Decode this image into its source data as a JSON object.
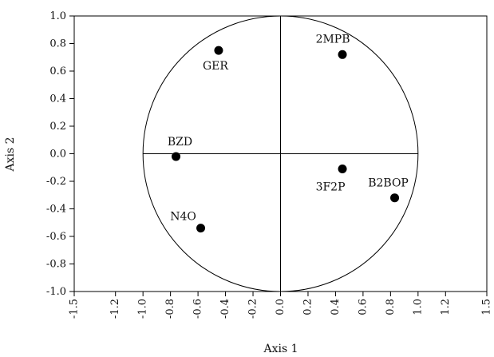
{
  "chart_data": {
    "type": "scatter",
    "title": "",
    "xlabel": "Axis 1",
    "ylabel": "Axis 2",
    "xlim": [
      -1.5,
      1.5
    ],
    "ylim": [
      -1.0,
      1.0
    ],
    "x_ticks": [
      "-1.5",
      "-1.2",
      "-1.0",
      "-0.8",
      "-0.6",
      "-0.4",
      "-0.2",
      "0.0",
      "0.2",
      "0.4",
      "0.6",
      "0.8",
      "1.0",
      "1.2",
      "1.5"
    ],
    "x_tick_values": [
      -1.5,
      -1.2,
      -1.0,
      -0.8,
      -0.6,
      -0.4,
      -0.2,
      0.0,
      0.2,
      0.4,
      0.6,
      0.8,
      1.0,
      1.2,
      1.5
    ],
    "y_ticks": [
      "1.0",
      "0.8",
      "0.6",
      "0.4",
      "0.2",
      "0.0",
      "-0.2",
      "-0.4",
      "-0.6",
      "-0.8",
      "-1.0"
    ],
    "y_tick_values": [
      1.0,
      0.8,
      0.6,
      0.4,
      0.2,
      0.0,
      -0.2,
      -0.4,
      -0.6,
      -0.8,
      -1.0
    ],
    "unit_circle": true,
    "grid": false,
    "points": [
      {
        "label": "GER",
        "x": -0.45,
        "y": 0.75
      },
      {
        "label": "2MPB",
        "x": 0.45,
        "y": 0.72
      },
      {
        "label": "BZD",
        "x": -0.76,
        "y": -0.02
      },
      {
        "label": "3F2P",
        "x": 0.45,
        "y": -0.11
      },
      {
        "label": "B2BOP",
        "x": 0.83,
        "y": -0.32
      },
      {
        "label": "N4O",
        "x": -0.58,
        "y": -0.54
      }
    ]
  }
}
